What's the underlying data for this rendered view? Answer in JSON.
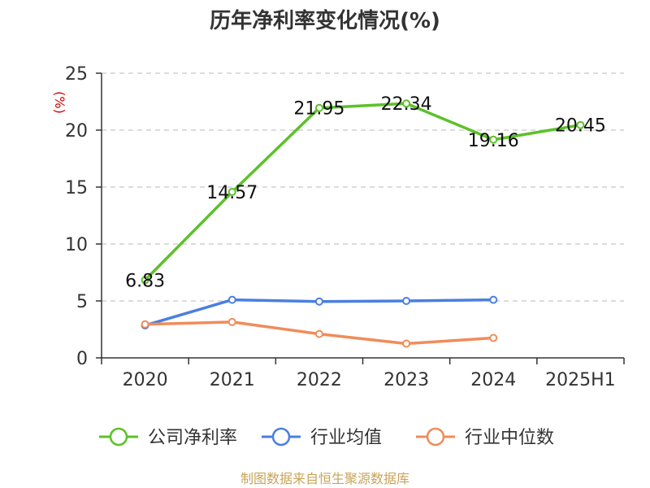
{
  "chart_data": {
    "type": "line",
    "title": "历年净利率变化情况(%)",
    "unit_label": "(%)",
    "categories": [
      "2020",
      "2021",
      "2022",
      "2023",
      "2024",
      "2025H1"
    ],
    "ylim": [
      0,
      25
    ],
    "yticks": [
      0,
      5,
      10,
      15,
      20,
      25
    ],
    "grid": true,
    "legend_position": "bottom",
    "series": [
      {
        "name": "公司净利率",
        "color": "#5cc12a",
        "values": [
          6.83,
          14.57,
          21.95,
          22.34,
          19.16,
          20.45
        ],
        "labels": [
          "6.83",
          "14.57",
          "21.95",
          "22.34",
          "19.16",
          "20.45"
        ]
      },
      {
        "name": "行业均值",
        "color": "#4a7fe0",
        "values": [
          2.85,
          5.1,
          4.95,
          5.0,
          5.1,
          null
        ]
      },
      {
        "name": "行业中位数",
        "color": "#f08c5a",
        "values": [
          2.95,
          3.15,
          2.1,
          1.25,
          1.75,
          null
        ]
      }
    ]
  },
  "footer": {
    "source": "制图数据来自恒生聚源数据库"
  }
}
